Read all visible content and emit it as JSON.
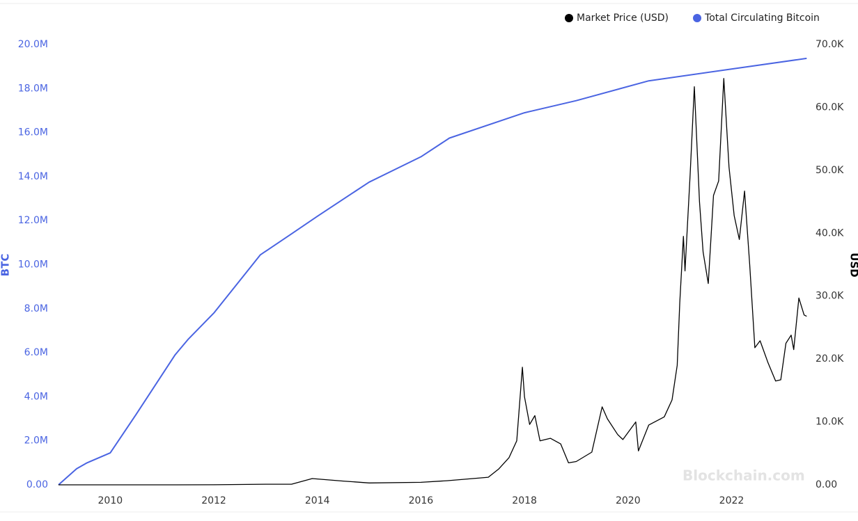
{
  "chart_data": {
    "type": "line",
    "watermark": "Blockchain.com",
    "ylabel": "BTC",
    "y2label": "USD",
    "legend": "top-right",
    "xlim": [
      2009,
      2023.5
    ],
    "xticks": [
      2010,
      2012,
      2014,
      2016,
      2018,
      2020,
      2022
    ],
    "ylim": [
      0,
      20000000
    ],
    "yticks": [
      {
        "value": 0,
        "label": "0.00"
      },
      {
        "value": 2000000,
        "label": "2.0M"
      },
      {
        "value": 4000000,
        "label": "4.0M"
      },
      {
        "value": 6000000,
        "label": "6.0M"
      },
      {
        "value": 8000000,
        "label": "8.0M"
      },
      {
        "value": 10000000,
        "label": "10.0M"
      },
      {
        "value": 12000000,
        "label": "12.0M"
      },
      {
        "value": 14000000,
        "label": "14.0M"
      },
      {
        "value": 16000000,
        "label": "16.0M"
      },
      {
        "value": 18000000,
        "label": "18.0M"
      },
      {
        "value": 20000000,
        "label": "20.0M"
      }
    ],
    "y2lim": [
      0,
      70000
    ],
    "y2ticks": [
      {
        "value": 0,
        "label": "0.00"
      },
      {
        "value": 10000,
        "label": "10.0K"
      },
      {
        "value": 20000,
        "label": "20.0K"
      },
      {
        "value": 30000,
        "label": "30.0K"
      },
      {
        "value": 40000,
        "label": "40.0K"
      },
      {
        "value": 50000,
        "label": "50.0K"
      },
      {
        "value": 60000,
        "label": "60.0K"
      },
      {
        "value": 70000,
        "label": "70.0K"
      }
    ],
    "series": [
      {
        "name": "Market Price (USD)",
        "color": "#000000",
        "axis": "y2",
        "x": [
          2009.0,
          2010.0,
          2011.0,
          2012.0,
          2013.0,
          2013.5,
          2013.9,
          2014.5,
          2015.0,
          2016.0,
          2016.5,
          2017.0,
          2017.3,
          2017.5,
          2017.7,
          2017.85,
          2017.96,
          2018.0,
          2018.1,
          2018.2,
          2018.3,
          2018.5,
          2018.7,
          2018.85,
          2019.0,
          2019.3,
          2019.5,
          2019.6,
          2019.8,
          2019.9,
          2020.15,
          2020.2,
          2020.4,
          2020.7,
          2020.85,
          2020.95,
          2021.0,
          2021.07,
          2021.1,
          2021.2,
          2021.28,
          2021.38,
          2021.45,
          2021.55,
          2021.65,
          2021.75,
          2021.85,
          2021.95,
          2022.05,
          2022.15,
          2022.25,
          2022.35,
          2022.45,
          2022.55,
          2022.7,
          2022.85,
          2022.95,
          2023.05,
          2023.15,
          2023.2,
          2023.3,
          2023.4,
          2023.45
        ],
        "values": [
          0,
          0,
          0,
          10,
          100,
          100,
          1000,
          600,
          300,
          400,
          650,
          1000,
          1200,
          2500,
          4300,
          7000,
          18700,
          14000,
          9600,
          11000,
          7000,
          7400,
          6500,
          3500,
          3700,
          5200,
          12400,
          10500,
          8000,
          7200,
          10000,
          5400,
          9500,
          10800,
          13500,
          19000,
          29000,
          39500,
          34000,
          49400,
          63300,
          45000,
          37000,
          32000,
          46000,
          48300,
          64600,
          50500,
          42800,
          39000,
          46700,
          35000,
          21800,
          22900,
          19500,
          16500,
          16700,
          22500,
          23800,
          21500,
          29700,
          27000,
          26800
        ]
      },
      {
        "name": "Total Circulating Bitcoin",
        "color": "#4a64e2",
        "x": [
          2009.0,
          2009.35,
          2009.55,
          2010.0,
          2010.5,
          2011.25,
          2011.5,
          2012.0,
          2012.9,
          2013.5,
          2014.0,
          2015.0,
          2016.0,
          2016.55,
          2018.0,
          2019.0,
          2020.4,
          2023.45
        ],
        "values": [
          0,
          730000,
          1000000,
          1450000,
          3200000,
          5900000,
          6600000,
          7800000,
          10450000,
          11400000,
          12200000,
          13750000,
          14900000,
          15750000,
          16900000,
          17450000,
          18350000,
          19370000
        ]
      }
    ]
  }
}
